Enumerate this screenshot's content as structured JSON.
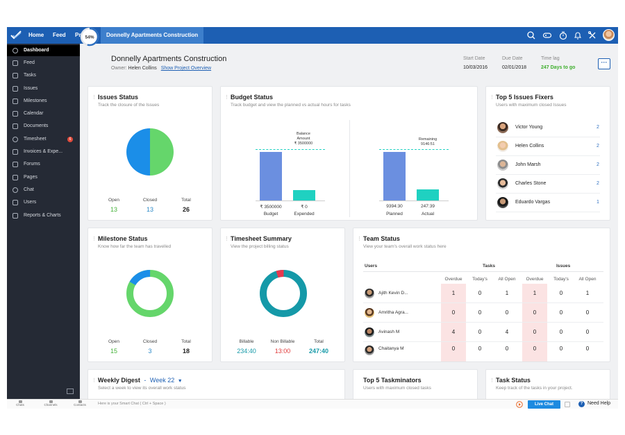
{
  "topbar": {
    "nav": [
      "Home",
      "Feed",
      "Projects",
      "Donnelly Apartments Construction"
    ],
    "icons": [
      "search-icon",
      "gamepad-icon",
      "timer-icon",
      "bell-icon",
      "tools-icon",
      "user-avatar"
    ]
  },
  "sidebar": {
    "items": [
      {
        "label": "Dashboard",
        "icon": "clock-icon"
      },
      {
        "label": "Feed",
        "icon": "feed-icon"
      },
      {
        "label": "Tasks",
        "icon": "tasks-icon"
      },
      {
        "label": "Issues",
        "icon": "bug-icon"
      },
      {
        "label": "Milestones",
        "icon": "milestone-icon"
      },
      {
        "label": "Calendar",
        "icon": "calendar-icon"
      },
      {
        "label": "Documents",
        "icon": "folder-icon"
      },
      {
        "label": "Timesheet",
        "icon": "timer-icon",
        "badge": "6"
      },
      {
        "label": "Invoices & Expe...",
        "icon": "invoice-icon"
      },
      {
        "label": "Forums",
        "icon": "forum-icon"
      },
      {
        "label": "Pages",
        "icon": "pages-icon"
      },
      {
        "label": "Chat",
        "icon": "chat-icon"
      },
      {
        "label": "Users",
        "icon": "users-icon"
      },
      {
        "label": "Reports & Charts",
        "icon": "reports-icon"
      }
    ]
  },
  "project": {
    "progress": "54%",
    "progress_value": 0.54,
    "title": "Donnelly Apartments Construction",
    "owner_label": "Owner:",
    "owner_name": "Helen Collins",
    "overview_link": "Show Project Overview",
    "start_date_label": "Start Date",
    "start_date": "10/03/2016",
    "due_date_label": "Due Date",
    "due_date": "02/01/2018",
    "time_lag_label": "Time lag",
    "time_lag": "247 Days to go",
    "more_label": "···"
  },
  "issues_status": {
    "title": "Issues Status",
    "subtitle": "Track the closure of the Issues",
    "labels": [
      "Open",
      "Closed",
      "Total"
    ],
    "values": [
      "13",
      "13",
      "26"
    ]
  },
  "budget_status": {
    "title": "Budget Status",
    "subtitle": "Track budget and view the planned vs actual hours for tasks",
    "left_annotation": [
      "Balance",
      "Amount",
      "₹ 3500000"
    ],
    "right_annotation": [
      "Remaining",
      "9146:51"
    ],
    "left_values": [
      "₹ 3500000",
      "₹ 0"
    ],
    "left_labels": [
      "Budget",
      "Expended"
    ],
    "right_values": [
      "9394:30",
      "247:39"
    ],
    "right_labels": [
      "Planned",
      "Actual"
    ],
    "colors": {
      "primary": "#6b8fe0",
      "secondary": "#1fd1c1"
    }
  },
  "top_fixers": {
    "title": "Top 5 Issues Fixers",
    "subtitle": "Users with maximum closed Issues",
    "rows": [
      {
        "name": "Victor Young",
        "count": "2"
      },
      {
        "name": "Helen Collins",
        "count": "2"
      },
      {
        "name": "John Marsh",
        "count": "2"
      },
      {
        "name": "Charles Stone",
        "count": "2"
      },
      {
        "name": "Eduardo Vargas",
        "count": "1"
      }
    ]
  },
  "milestone_status": {
    "title": "Milestone Status",
    "subtitle": "Know how far the team has travelled",
    "labels": [
      "Open",
      "Closed",
      "Total"
    ],
    "values": [
      "15",
      "3",
      "18"
    ]
  },
  "timesheet_summary": {
    "title": "Timesheet Summary",
    "subtitle": "View the project billing status",
    "labels": [
      "Billable",
      "Non Billable",
      "Total"
    ],
    "values": [
      "234:40",
      "13:00",
      "247:40"
    ]
  },
  "team_status": {
    "title": "Team Status",
    "subtitle": "View your team's overall work status here",
    "header_users": "Users",
    "header_tasks": "Tasks",
    "header_issues": "Issues",
    "sub_headers": [
      "Overdue",
      "Today's",
      "All Open",
      "Overdue",
      "Today's",
      "All Open"
    ],
    "rows": [
      {
        "name": "Ajith Kevin D...",
        "values": [
          "1",
          "0",
          "1",
          "1",
          "0",
          "1"
        ]
      },
      {
        "name": "Amritha Agra...",
        "values": [
          "0",
          "0",
          "0",
          "0",
          "0",
          "0"
        ]
      },
      {
        "name": "Avinash M",
        "values": [
          "4",
          "0",
          "4",
          "0",
          "0",
          "0"
        ]
      },
      {
        "name": "Chaitanya M",
        "values": [
          "0",
          "0",
          "0",
          "0",
          "0",
          "0"
        ]
      }
    ]
  },
  "weekly_digest": {
    "title": "Weekly Digest",
    "separator": "-",
    "week": "Week 22",
    "subtitle": "Select a week to view its overall work status"
  },
  "top_taskminators": {
    "title": "Top 5 Taskminators",
    "subtitle": "Users with maximum closed tasks"
  },
  "task_status": {
    "title": "Task Status",
    "subtitle": "Keep track of the tasks in your project."
  },
  "bottombar": {
    "tabs": [
      "Chats",
      "Channels",
      "Contacts"
    ],
    "chat_placeholder": "Here is your Smart Chat ( Ctrl + Space )",
    "live_chat": "Live Chat",
    "need_help": "Need Help",
    "help_glyph": "?"
  }
}
